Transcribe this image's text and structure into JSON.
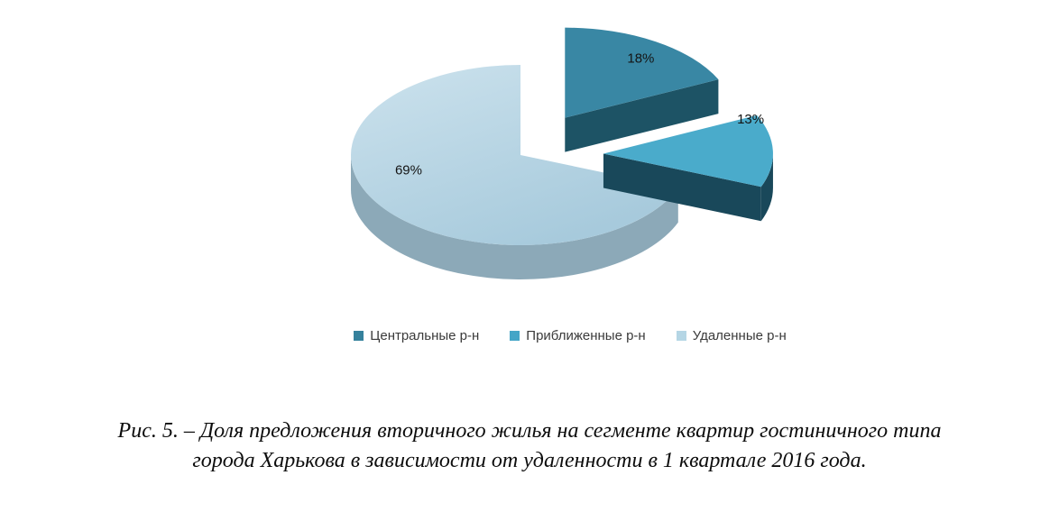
{
  "chart_data": {
    "type": "pie",
    "style": "3d-exploded",
    "title": "",
    "legend_position": "bottom",
    "series": [
      {
        "label": "Центральные р-н",
        "value": 18,
        "display": "18%",
        "exploded": true,
        "color_face": "#3987a4",
        "color_side": "#1d5365",
        "color_marker": "#35819c"
      },
      {
        "label": "Приближенные р-н",
        "value": 13,
        "display": "13%",
        "exploded": true,
        "color_face": "#4aabcb",
        "color_side": "#19485a",
        "color_marker": "#44a5c7"
      },
      {
        "label": "Удаленные р-н",
        "value": 69,
        "display": "69%",
        "exploded": false,
        "color_face": "#bcd8e6",
        "color_face_light": "#cce2ed",
        "color_face_dark": "#a7cadc",
        "color_side": "#8ca9b8",
        "color_marker": "#b5d6e5"
      }
    ]
  },
  "caption": {
    "lines": [
      "Рис. 5. –  Доля предложения вторичного жилья  на сегменте квартир гостиничного типа",
      "города Харькова в зависимости от удаленности в 1 квартале 2016 года."
    ]
  }
}
